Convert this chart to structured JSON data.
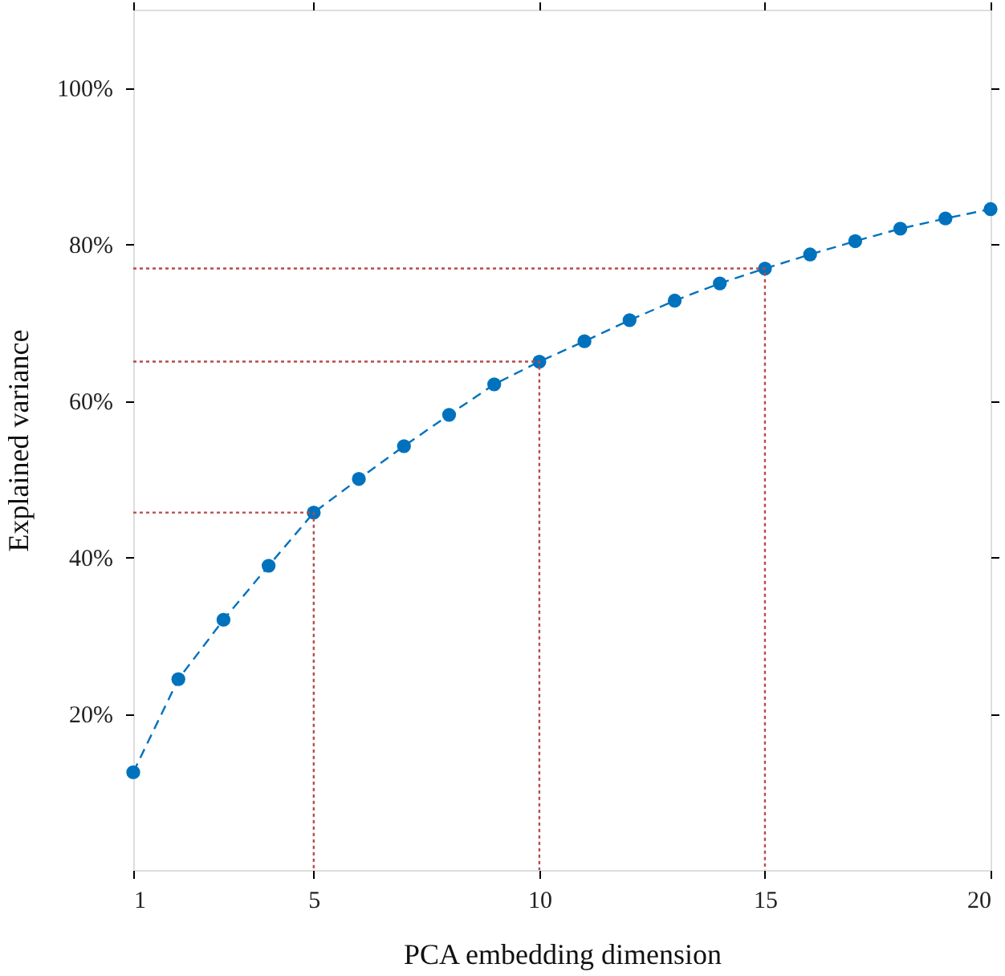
{
  "chart_data": {
    "type": "line",
    "xlabel": "PCA embedding dimension",
    "ylabel": "Explained variance",
    "xlim": [
      1,
      20
    ],
    "xticks": [
      1,
      5,
      10,
      15,
      20
    ],
    "ylim": [
      0,
      110
    ],
    "yticks": [
      {
        "value": 20,
        "label": "20%"
      },
      {
        "value": 40,
        "label": "40%"
      },
      {
        "value": 60,
        "label": "60%"
      },
      {
        "value": 80,
        "label": "80%"
      },
      {
        "value": 100,
        "label": "100%"
      }
    ],
    "grid": false,
    "series": [
      {
        "color": "#0072bd",
        "marker": "circle",
        "line_style": "dashed",
        "x": [
          1,
          2,
          3,
          4,
          5,
          6,
          7,
          8,
          9,
          10,
          11,
          12,
          13,
          14,
          15,
          16,
          17,
          18,
          19,
          20
        ],
        "values": [
          12.5,
          24.4,
          32.0,
          38.9,
          45.7,
          50.0,
          54.2,
          58.2,
          62.1,
          65.0,
          67.6,
          70.3,
          72.8,
          75.0,
          76.9,
          78.7,
          80.4,
          82.0,
          83.3,
          84.5
        ]
      },
      {
        "color": "#b84a4a",
        "marker": "none",
        "line_style": "dotted",
        "x": [
          1,
          5,
          5
        ],
        "values": [
          45.7,
          45.7,
          0
        ]
      },
      {
        "color": "#b84a4a",
        "marker": "none",
        "line_style": "dotted",
        "x": [
          1,
          10,
          10
        ],
        "values": [
          65.0,
          65.0,
          0
        ]
      },
      {
        "color": "#b84a4a",
        "marker": "none",
        "line_style": "dotted",
        "x": [
          1,
          15,
          15
        ],
        "values": [
          76.9,
          76.9,
          0
        ]
      }
    ]
  }
}
